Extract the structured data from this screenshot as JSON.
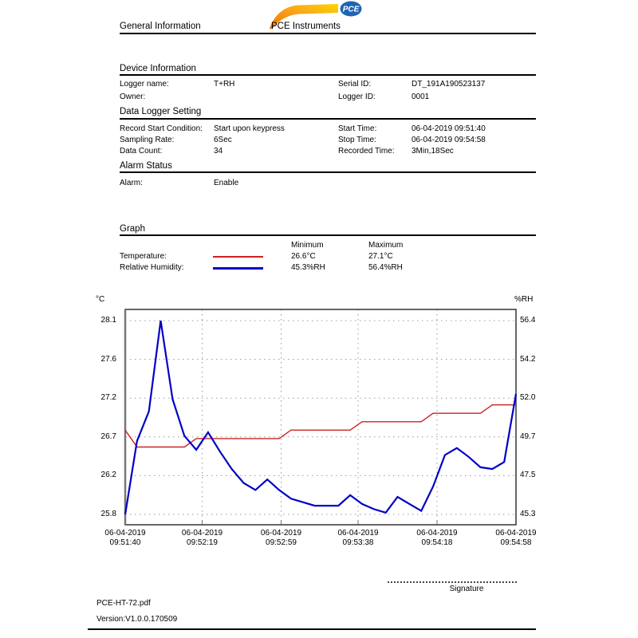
{
  "header": {
    "title": "General Information",
    "brand": "PCE Instruments",
    "logo": "PCE"
  },
  "device": {
    "title": "Device Information",
    "fields": [
      {
        "label": "Logger name:",
        "value": "T+RH"
      },
      {
        "label": "Serial ID:",
        "value": "DT_191A190523137"
      },
      {
        "label": "Owner:",
        "value": ""
      },
      {
        "label": "Logger ID:",
        "value": "0001"
      }
    ]
  },
  "settings": {
    "title": "Data Logger Setting",
    "fields": [
      {
        "label": "Record Start Condition:",
        "value": "Start upon keypress"
      },
      {
        "label": "Start Time:",
        "value": "06-04-2019 09:51:40"
      },
      {
        "label": "Sampling Rate:",
        "value": "6Sec"
      },
      {
        "label": "Stop Time:",
        "value": "06-04-2019 09:54:58"
      },
      {
        "label": "Data Count:",
        "value": "34"
      },
      {
        "label": "Recorded Time:",
        "value": "3Min,18Sec"
      }
    ]
  },
  "alarm": {
    "title": "Alarm Status",
    "fields": [
      {
        "label": "Alarm:",
        "value": "Enable"
      }
    ]
  },
  "graph": {
    "title": "Graph",
    "col_min": "Minimum",
    "col_max": "Maximum",
    "legend": [
      {
        "label": "Temperature:",
        "min": "26.6°C",
        "max": "27.1°C"
      },
      {
        "label": "Relative Humidity:",
        "min": "45.3%RH",
        "max": "56.4%RH"
      }
    ]
  },
  "footer": {
    "signature": "Signature",
    "filename": "PCE-HT-72.pdf",
    "version": "Version:V1.0.0.170509"
  },
  "chart_data": {
    "type": "line",
    "grid": true,
    "total_seconds": 198,
    "point_interval_seconds": 6,
    "x_tick_seconds": [
      0,
      39,
      79,
      118,
      158,
      198
    ],
    "x_tick_labels": [
      [
        "06-04-2019",
        "09:51:40"
      ],
      [
        "06-04-2019",
        "09:52:19"
      ],
      [
        "06-04-2019",
        "09:52:59"
      ],
      [
        "06-04-2019",
        "09:53:38"
      ],
      [
        "06-04-2019",
        "09:54:18"
      ],
      [
        "06-04-2019",
        "09:54:58"
      ]
    ],
    "left_axis": {
      "label": "°C",
      "min": 25.8,
      "max": 28.1,
      "ticks": [
        "28.1",
        "27.6",
        "27.2",
        "26.7",
        "26.2",
        "25.8"
      ]
    },
    "right_axis": {
      "label": "%RH",
      "min": 45.3,
      "max": 56.4,
      "ticks": [
        "56.4",
        "54.2",
        "52.0",
        "49.7",
        "47.5",
        "45.3"
      ]
    },
    "series": [
      {
        "name": "Temperature",
        "axis": "left",
        "color": "#cc2222",
        "width": 1.4,
        "values": [
          26.8,
          26.6,
          26.6,
          26.6,
          26.6,
          26.6,
          26.7,
          26.7,
          26.7,
          26.7,
          26.7,
          26.7,
          26.7,
          26.7,
          26.8,
          26.8,
          26.8,
          26.8,
          26.8,
          26.8,
          26.9,
          26.9,
          26.9,
          26.9,
          26.9,
          26.9,
          27.0,
          27.0,
          27.0,
          27.0,
          27.0,
          27.1,
          27.1,
          27.1
        ]
      },
      {
        "name": "Relative Humidity",
        "axis": "right",
        "color": "#0000c8",
        "width": 2.2,
        "values": [
          45.3,
          49.5,
          51.2,
          56.4,
          51.9,
          49.8,
          49.0,
          50.0,
          48.9,
          47.9,
          47.1,
          46.7,
          47.3,
          46.7,
          46.2,
          46.0,
          45.8,
          45.8,
          45.8,
          46.4,
          45.9,
          45.6,
          45.4,
          46.3,
          45.9,
          45.5,
          46.9,
          48.7,
          49.1,
          48.6,
          48.0,
          47.9,
          48.3,
          52.2
        ]
      }
    ]
  }
}
